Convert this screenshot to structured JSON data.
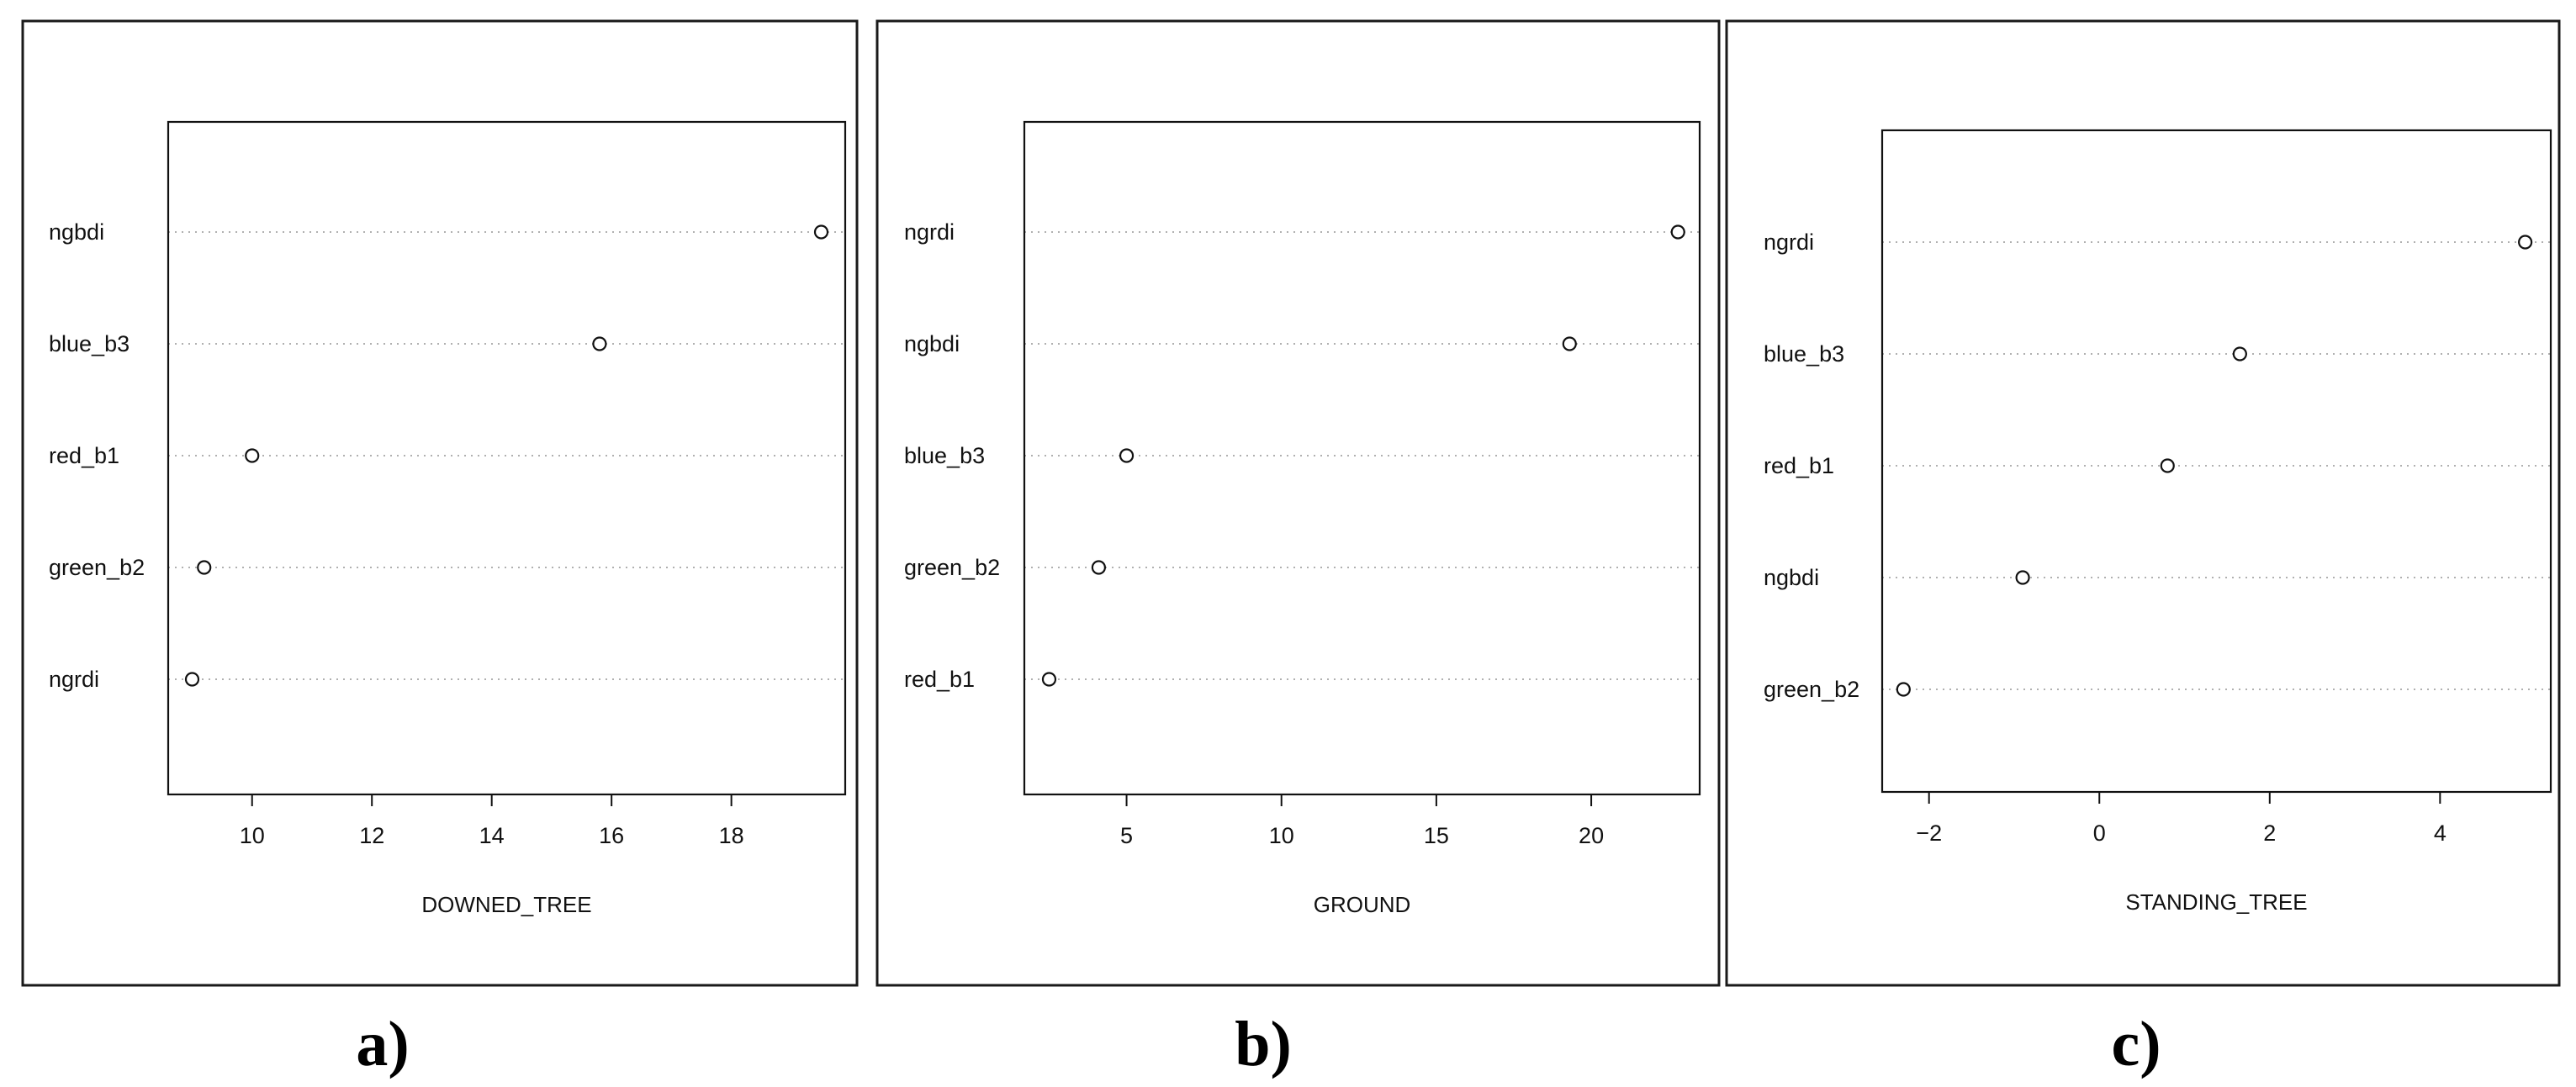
{
  "panels": [
    {
      "label": "a)",
      "chart_data": {
        "type": "scatter",
        "title": "",
        "xlabel": "DOWNED_TREE",
        "ylabel": "",
        "xlim": [
          8.6,
          19.9
        ],
        "xticks": [
          10,
          12,
          14,
          16,
          18
        ],
        "grid": "horizontal dotted",
        "categories": [
          "ngbdi",
          "blue_b3",
          "red_b1",
          "green_b2",
          "ngrdi"
        ],
        "values": [
          19.5,
          15.8,
          10.0,
          9.2,
          9.0
        ]
      }
    },
    {
      "label": "b)",
      "chart_data": {
        "type": "scatter",
        "title": "",
        "xlabel": "GROUND",
        "ylabel": "",
        "xlim": [
          1.7,
          23.5
        ],
        "xticks": [
          5,
          10,
          15,
          20
        ],
        "grid": "horizontal dotted",
        "categories": [
          "ngrdi",
          "ngbdi",
          "blue_b3",
          "green_b2",
          "red_b1"
        ],
        "values": [
          22.8,
          19.3,
          5.0,
          4.1,
          2.5
        ]
      }
    },
    {
      "label": "c)",
      "chart_data": {
        "type": "scatter",
        "title": "",
        "xlabel": "STANDING_TREE",
        "ylabel": "",
        "xlim": [
          -2.55,
          5.3
        ],
        "xticks": [
          -2,
          0,
          2,
          4
        ],
        "grid": "horizontal dotted",
        "categories": [
          "ngrdi",
          "blue_b3",
          "red_b1",
          "ngbdi",
          "green_b2"
        ],
        "values": [
          5.0,
          1.65,
          0.8,
          -0.9,
          -2.3
        ]
      }
    }
  ]
}
